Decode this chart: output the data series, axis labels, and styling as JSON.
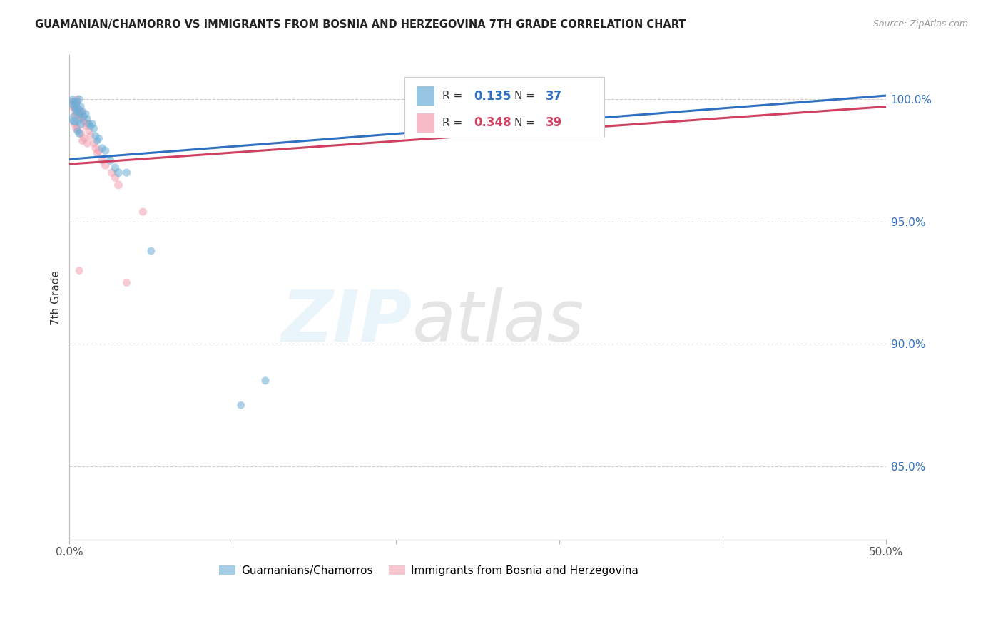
{
  "title": "GUAMANIAN/CHAMORRO VS IMMIGRANTS FROM BOSNIA AND HERZEGOVINA 7TH GRADE CORRELATION CHART",
  "source": "Source: ZipAtlas.com",
  "ylabel": "7th Grade",
  "ytick_positions": [
    85.0,
    90.0,
    95.0,
    100.0
  ],
  "xmin": 0.0,
  "xmax": 50.0,
  "ymin": 82.0,
  "ymax": 101.8,
  "blue_R": 0.135,
  "blue_N": 37,
  "pink_R": 0.348,
  "pink_N": 39,
  "blue_color": "#6aaed6",
  "pink_color": "#f4a0b0",
  "blue_line_color": "#3070c0",
  "pink_line_color": "#d04060",
  "legend_label_blue": "Guamanians/Chamorros",
  "legend_label_pink": "Immigrants from Bosnia and Herzegovina",
  "blue_line_x0": 0.0,
  "blue_line_y0": 97.55,
  "blue_line_x1": 50.0,
  "blue_line_y1": 100.15,
  "pink_line_x0": 0.0,
  "pink_line_y0": 97.35,
  "pink_line_x1": 50.0,
  "pink_line_y1": 99.7,
  "blue_scatter_x": [
    0.15,
    0.2,
    0.25,
    0.3,
    0.35,
    0.4,
    0.45,
    0.5,
    0.55,
    0.6,
    0.65,
    0.7,
    0.8,
    0.9,
    1.0,
    1.1,
    1.2,
    1.3,
    1.4,
    1.5,
    1.6,
    1.7,
    1.8,
    2.0,
    2.2,
    2.5,
    2.8,
    3.0,
    0.3,
    0.5,
    0.6,
    3.5,
    5.0,
    10.5,
    12.0,
    0.4,
    0.7
  ],
  "blue_scatter_y": [
    99.8,
    100.0,
    99.9,
    99.7,
    99.6,
    99.8,
    99.5,
    99.9,
    99.6,
    100.0,
    99.4,
    99.7,
    99.5,
    99.3,
    99.4,
    99.2,
    99.0,
    98.9,
    99.0,
    98.8,
    98.5,
    98.3,
    98.4,
    98.0,
    97.9,
    97.5,
    97.2,
    97.0,
    99.1,
    98.7,
    98.6,
    97.0,
    93.8,
    87.5,
    88.5,
    99.2,
    99.0
  ],
  "blue_scatter_size": [
    55,
    55,
    55,
    60,
    55,
    60,
    55,
    60,
    55,
    65,
    55,
    60,
    60,
    55,
    65,
    55,
    55,
    55,
    60,
    60,
    60,
    55,
    60,
    65,
    65,
    70,
    70,
    75,
    80,
    60,
    65,
    65,
    60,
    60,
    65,
    200,
    80
  ],
  "pink_scatter_x": [
    0.1,
    0.2,
    0.25,
    0.3,
    0.35,
    0.4,
    0.45,
    0.5,
    0.55,
    0.6,
    0.65,
    0.7,
    0.75,
    0.8,
    0.9,
    1.0,
    1.1,
    1.2,
    1.3,
    1.5,
    1.6,
    1.7,
    1.8,
    2.0,
    2.2,
    2.6,
    2.8,
    3.0,
    4.5,
    0.3,
    0.5,
    0.7,
    0.9,
    1.1,
    0.6,
    3.5,
    0.4,
    0.35,
    0.8
  ],
  "pink_scatter_y": [
    99.7,
    99.9,
    99.8,
    99.7,
    99.5,
    99.8,
    99.6,
    100.0,
    99.4,
    99.6,
    99.3,
    99.5,
    99.2,
    99.4,
    99.1,
    98.9,
    99.0,
    98.7,
    98.5,
    98.2,
    98.0,
    97.8,
    97.9,
    97.5,
    97.3,
    97.0,
    96.8,
    96.5,
    95.4,
    99.0,
    98.8,
    98.6,
    98.4,
    98.2,
    93.0,
    92.5,
    98.8,
    99.3,
    98.3
  ],
  "pink_scatter_size": [
    55,
    60,
    55,
    65,
    60,
    65,
    60,
    65,
    60,
    65,
    60,
    65,
    60,
    65,
    60,
    65,
    60,
    65,
    65,
    65,
    65,
    65,
    70,
    70,
    70,
    70,
    70,
    75,
    65,
    70,
    70,
    70,
    70,
    70,
    60,
    60,
    65,
    65,
    65
  ]
}
